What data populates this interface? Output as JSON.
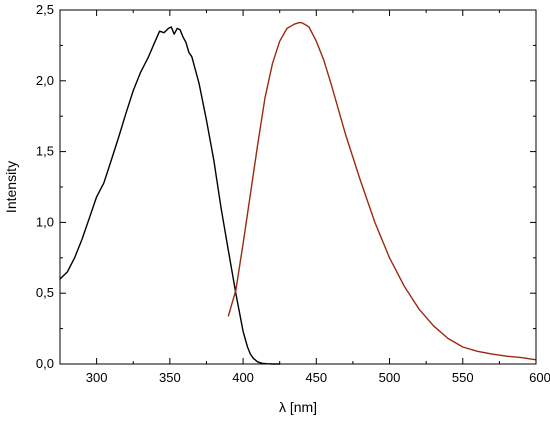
{
  "chart_data": {
    "type": "line",
    "title": "",
    "xlabel": "λ [nm]",
    "ylabel": "Intensity",
    "xlim": [
      275,
      600
    ],
    "ylim": [
      0,
      2.5
    ],
    "grid": false,
    "x_ticks": [
      300,
      350,
      400,
      450,
      500,
      550,
      600
    ],
    "x_tick_labels": [
      "300",
      "350",
      "400",
      "450",
      "500",
      "550",
      "600"
    ],
    "y_ticks": [
      0,
      0.5,
      1.0,
      1.5,
      2.0,
      2.5
    ],
    "y_tick_labels": [
      "0,0",
      "0,5",
      "1,0",
      "1,5",
      "2,0",
      "2,5"
    ],
    "series": [
      {
        "color": "#000000",
        "x": [
          275,
          280,
          285,
          290,
          295,
          300,
          305,
          310,
          315,
          320,
          325,
          330,
          335,
          340,
          343,
          346,
          349,
          351,
          353,
          355,
          357,
          359,
          361,
          363,
          365,
          370,
          375,
          380,
          385,
          390,
          395,
          400,
          403,
          405,
          407,
          410,
          413,
          416,
          420,
          425
        ],
        "y": [
          0.6,
          0.65,
          0.75,
          0.88,
          1.03,
          1.18,
          1.28,
          1.44,
          1.6,
          1.77,
          1.93,
          2.06,
          2.16,
          2.28,
          2.35,
          2.34,
          2.37,
          2.38,
          2.33,
          2.37,
          2.36,
          2.31,
          2.27,
          2.2,
          2.17,
          1.98,
          1.72,
          1.44,
          1.1,
          0.8,
          0.5,
          0.23,
          0.12,
          0.07,
          0.04,
          0.015,
          0.005,
          0.002,
          0.0,
          0.0
        ]
      },
      {
        "color": "#9b2a10",
        "x": [
          390,
          395,
          400,
          405,
          410,
          415,
          420,
          425,
          430,
          435,
          438,
          440,
          442,
          445,
          450,
          455,
          460,
          470,
          480,
          490,
          500,
          510,
          520,
          530,
          540,
          550,
          560,
          570,
          580,
          590,
          600
        ],
        "y": [
          0.34,
          0.52,
          0.85,
          1.2,
          1.55,
          1.88,
          2.12,
          2.28,
          2.37,
          2.4,
          2.41,
          2.41,
          2.4,
          2.38,
          2.28,
          2.15,
          1.98,
          1.62,
          1.3,
          1.0,
          0.75,
          0.55,
          0.39,
          0.27,
          0.18,
          0.12,
          0.09,
          0.07,
          0.055,
          0.045,
          0.03
        ]
      }
    ]
  }
}
